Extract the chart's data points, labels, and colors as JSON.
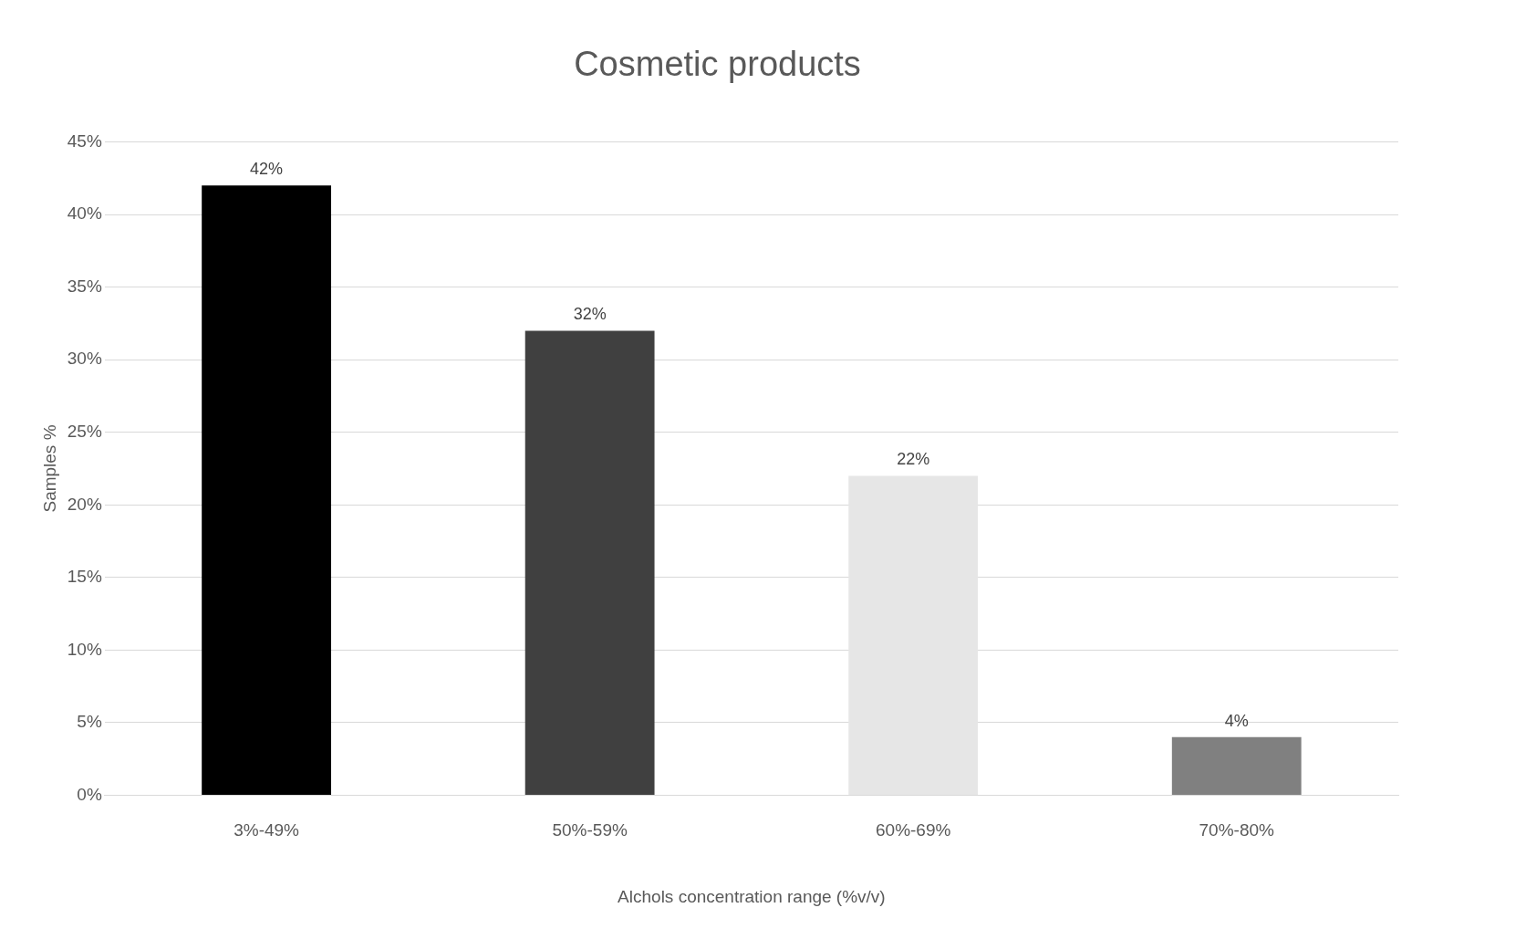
{
  "chart_data": {
    "type": "bar",
    "title": "Cosmetic products",
    "xlabel": "Alchols concentration range (%v/v)",
    "ylabel": "Samples %",
    "categories": [
      "3%-49%",
      "50%-59%",
      "60%-69%",
      "70%-80%"
    ],
    "values": [
      42,
      32,
      22,
      4
    ],
    "colors": [
      "#000000",
      "#404040",
      "#e6e6e6",
      "#808080"
    ],
    "value_labels": [
      "42%",
      "32%",
      "22%",
      "4%"
    ],
    "ylim": [
      0,
      45
    ],
    "yticks": [
      {
        "value": 0,
        "label": "0%"
      },
      {
        "value": 5,
        "label": "5%"
      },
      {
        "value": 10,
        "label": "10%"
      },
      {
        "value": 15,
        "label": "15%"
      },
      {
        "value": 20,
        "label": "20%"
      },
      {
        "value": 25,
        "label": "25%"
      },
      {
        "value": 30,
        "label": "30%"
      },
      {
        "value": 35,
        "label": "35%"
      },
      {
        "value": 40,
        "label": "40%"
      },
      {
        "value": 45,
        "label": "45%"
      }
    ],
    "grid": "y",
    "legend": false
  }
}
